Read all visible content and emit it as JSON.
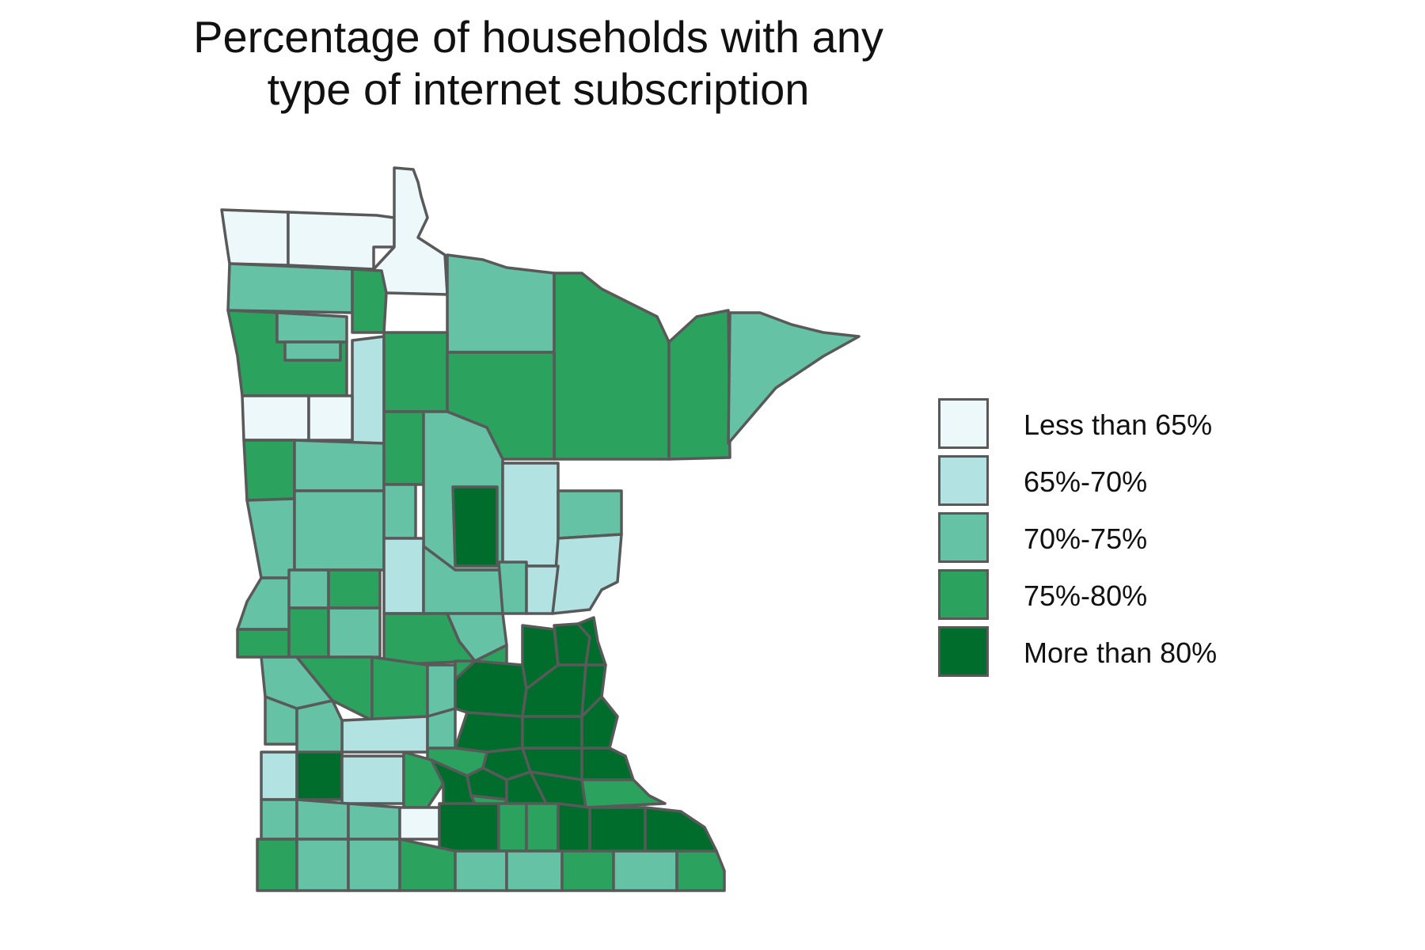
{
  "map": {
    "title_lines": [
      "Percentage of households with any",
      "type of internet subscription"
    ],
    "legend": [
      {
        "label": "Less than 65%",
        "color": "#edf8fb"
      },
      {
        "label": "65%-70%",
        "color": "#b2e2e2"
      },
      {
        "label": "70%-75%",
        "color": "#66c2a4"
      },
      {
        "label": "75%-80%",
        "color": "#2ca25f"
      },
      {
        "label": "More than 80%",
        "color": "#006d2c"
      }
    ],
    "outline_color": "#595959"
  }
}
